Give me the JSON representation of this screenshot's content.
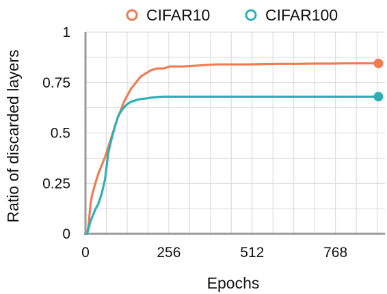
{
  "chart_data": {
    "type": "line",
    "title": "",
    "xlabel": "Epochs",
    "ylabel": "Ratio of discarded layers",
    "xlim": [
      0,
      920
    ],
    "ylim": [
      0,
      1
    ],
    "x_ticks": [
      "0",
      "256",
      "512",
      "768"
    ],
    "x_tick_values": [
      0,
      256,
      512,
      768
    ],
    "y_ticks": [
      "0",
      "0.25",
      "0.5",
      "0.75",
      "1"
    ],
    "y_tick_values": [
      0,
      0.25,
      0.5,
      0.75,
      1
    ],
    "grid": true,
    "legend_position": "top",
    "series": [
      {
        "name": "CIFAR10",
        "color": "#F07A52",
        "x": [
          0,
          5,
          10,
          15,
          20,
          30,
          40,
          50,
          60,
          70,
          80,
          90,
          100,
          110,
          120,
          130,
          140,
          150,
          160,
          170,
          180,
          190,
          200,
          220,
          240,
          260,
          300,
          350,
          400,
          450,
          500,
          550,
          600,
          650,
          700,
          750,
          800,
          850,
          900
        ],
        "y": [
          0,
          0,
          0.05,
          0.14,
          0.19,
          0.25,
          0.3,
          0.34,
          0.38,
          0.43,
          0.48,
          0.53,
          0.58,
          0.62,
          0.66,
          0.69,
          0.72,
          0.74,
          0.76,
          0.78,
          0.79,
          0.8,
          0.81,
          0.82,
          0.82,
          0.83,
          0.83,
          0.835,
          0.84,
          0.84,
          0.84,
          0.842,
          0.843,
          0.843,
          0.844,
          0.844,
          0.845,
          0.845,
          0.845
        ]
      },
      {
        "name": "CIFAR100",
        "color": "#2AB0B5",
        "x": [
          0,
          5,
          10,
          15,
          20,
          30,
          40,
          50,
          60,
          70,
          80,
          90,
          100,
          110,
          120,
          130,
          140,
          150,
          160,
          170,
          180,
          190,
          200,
          220,
          240,
          260,
          300,
          350,
          400,
          450,
          500,
          550,
          600,
          650,
          700,
          750,
          800,
          850,
          900
        ],
        "y": [
          0,
          0,
          0.03,
          0.06,
          0.08,
          0.12,
          0.15,
          0.2,
          0.27,
          0.4,
          0.47,
          0.53,
          0.58,
          0.61,
          0.63,
          0.645,
          0.655,
          0.66,
          0.665,
          0.668,
          0.67,
          0.672,
          0.675,
          0.678,
          0.68,
          0.68,
          0.68,
          0.68,
          0.68,
          0.68,
          0.68,
          0.68,
          0.68,
          0.68,
          0.68,
          0.68,
          0.68,
          0.68,
          0.68
        ]
      }
    ]
  }
}
